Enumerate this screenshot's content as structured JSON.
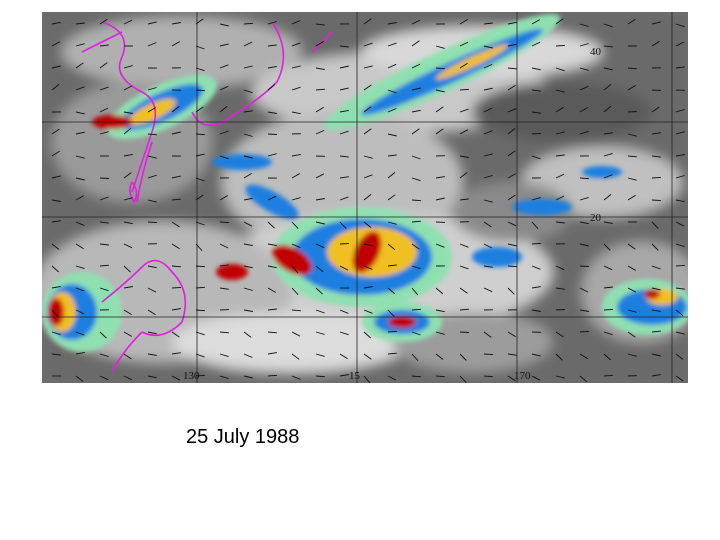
{
  "caption": "25 July 1988",
  "map": {
    "longitude_labels": [
      "130",
      "15",
      "170"
    ],
    "latitude_labels": [
      "40",
      "20"
    ],
    "colors": {
      "background_gray": "#6e6e6e",
      "cloud_light": "#d0d0d0",
      "cloud_mid": "#a8a8a8",
      "level_green": "#8fe0b0",
      "level_blue": "#1a7fe0",
      "level_yellow": "#f0c020",
      "level_red": "#c00000",
      "coastline_magenta": "#e020e0",
      "grid_line": "#222222"
    }
  }
}
